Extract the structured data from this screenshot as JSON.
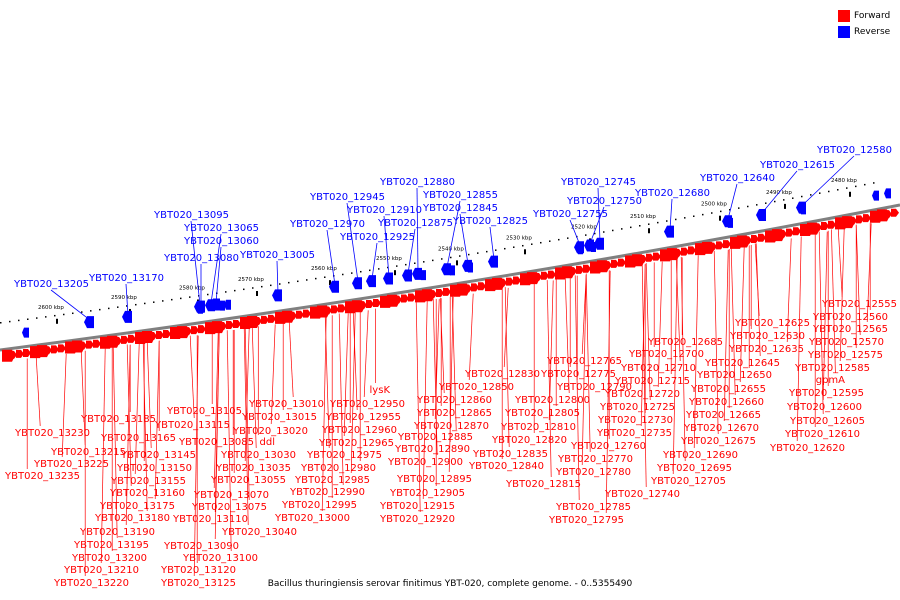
{
  "colors": {
    "forward": "#ff0000",
    "reverse": "#0000ff",
    "backbone": "#808080",
    "tick": "#000000"
  },
  "legend": [
    {
      "label": "Forward",
      "color": "#ff0000"
    },
    {
      "label": "Reverse",
      "color": "#0000ff"
    }
  ],
  "caption": "Bacillus thuringiensis serovar finitimus YBT-020, complete genome. - 0..5355490",
  "scale_labels": [
    "2600 kbp",
    "2590 kbp",
    "2580 kbp",
    "2570 kbp",
    "2560 kbp",
    "2550 kbp",
    "2540 kbp",
    "2530 kbp",
    "2520 kbp",
    "2510 kbp",
    "2500 kbp",
    "2490 kbp",
    "2480 kbp"
  ],
  "reverse_labels": [
    "YBT020_13205",
    "YBT020_13170",
    "YBT020_13095",
    "YBT020_13065",
    "YBT020_13060",
    "YBT020_13080",
    "YBT020_13005",
    "YBT020_12970",
    "YBT020_12945",
    "YBT020_12910",
    "YBT020_12925",
    "YBT020_12880",
    "YBT020_12855",
    "YBT020_12875",
    "YBT020_12845",
    "YBT020_12825",
    "YBT020_12745",
    "YBT020_12750",
    "YBT020_12755",
    "YBT020_12680",
    "YBT020_12640",
    "YBT020_12615",
    "YBT020_12580"
  ],
  "forward_labels": [
    "YBT020_12555",
    "YBT020_12560",
    "YBT020_12565",
    "YBT020_12570",
    "YBT020_12575",
    "YBT020_12585",
    "gpmA",
    "YBT020_12595",
    "YBT020_12600",
    "YBT020_12605",
    "YBT020_12610",
    "YBT020_12620",
    "YBT020_12625",
    "YBT020_12630",
    "YBT020_12635",
    "YBT020_12645",
    "YBT020_12650",
    "YBT020_12655",
    "YBT020_12660",
    "YBT020_12665",
    "YBT020_12670",
    "YBT020_12675",
    "YBT020_12685",
    "YBT020_12690",
    "YBT020_12695",
    "YBT020_12700",
    "YBT020_12705",
    "YBT020_12710",
    "YBT020_12715",
    "YBT020_12720",
    "YBT020_12725",
    "YBT020_12730",
    "YBT020_12735",
    "YBT020_12740",
    "YBT020_12760",
    "YBT020_12765",
    "YBT020_12770",
    "YBT020_12775",
    "YBT020_12780",
    "YBT020_12785",
    "YBT020_12790",
    "YBT020_12795",
    "YBT020_12800",
    "YBT020_12805",
    "YBT020_12810",
    "YBT020_12815",
    "YBT020_12820",
    "YBT020_12830",
    "YBT020_12835",
    "YBT020_12840",
    "YBT020_12850",
    "YBT020_12860",
    "YBT020_12865",
    "YBT020_12870",
    "YBT020_12885",
    "YBT020_12890",
    "YBT020_12895",
    "YBT020_12900",
    "YBT020_12905",
    "YBT020_12915",
    "YBT020_12920",
    "lysK",
    "YBT020_12950",
    "YBT020_12955",
    "YBT020_12960",
    "YBT020_12965",
    "YBT020_12975",
    "YBT020_12980",
    "YBT020_12985",
    "YBT020_12990",
    "YBT020_12995",
    "YBT020_13000",
    "YBT020_13010",
    "YBT020_13015",
    "YBT020_13020",
    "YBT020_13030",
    "ddl",
    "YBT020_13035",
    "YBT020_13040",
    "YBT020_13055",
    "YBT020_13070",
    "YBT020_13075",
    "YBT020_13085",
    "YBT020_13090",
    "YBT020_13100",
    "YBT020_13105",
    "YBT020_13110",
    "YBT020_13115",
    "YBT020_13120",
    "YBT020_13125",
    "YBT020_13145",
    "YBT020_13150",
    "YBT020_13155",
    "YBT020_13160",
    "YBT020_13165",
    "YBT020_13175",
    "YBT020_13180",
    "YBT020_13185",
    "YBT020_13190",
    "YBT020_13195",
    "YBT020_13200",
    "YBT020_13210",
    "YBT020_13215",
    "YBT020_13220",
    "YBT020_13225",
    "YBT020_13230",
    "YBT020_13235"
  ]
}
